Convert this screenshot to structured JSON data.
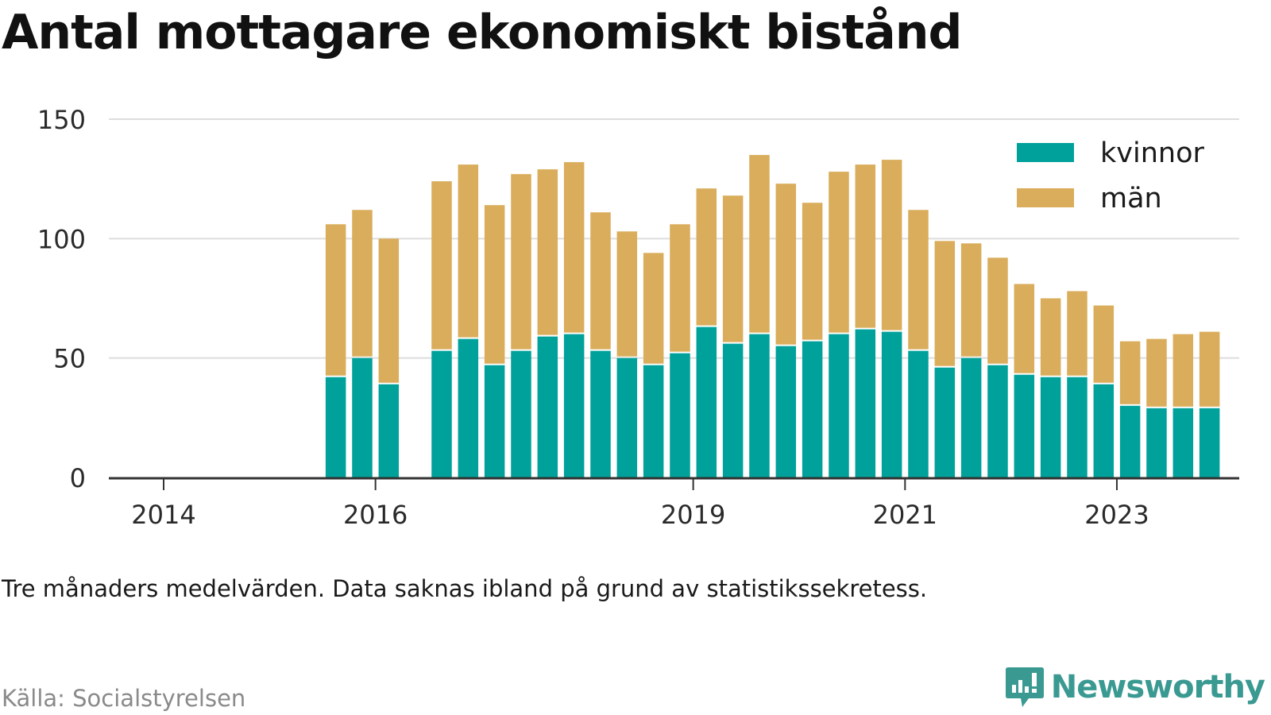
{
  "title": "Antal mottagare ekonomiskt bistånd",
  "subtitle": "Tre månaders medelvärden. Data saknas ibland på grund av statistikssekretess.",
  "source": "Källa: Socialstyrelsen",
  "brand": {
    "name": "Newsworthy",
    "icon": "newsworthy-logo-icon",
    "color": "#3a9a92"
  },
  "chart_data": {
    "type": "bar",
    "stacked": true,
    "xlabel": "",
    "ylabel": "",
    "ylim": [
      0,
      150
    ],
    "yticks": [
      0,
      50,
      100,
      150
    ],
    "xticks": [
      "2014",
      "2016",
      "2019",
      "2021",
      "2023"
    ],
    "grid": true,
    "legend_position": "top-right",
    "colors": {
      "kvinnor": "#00a19a",
      "män": "#d9ad5b"
    },
    "x": [
      "2015Q3",
      "2015Q4",
      "2016Q1",
      "2016Q2",
      "2016Q3",
      "2016Q4",
      "2017Q1",
      "2017Q2",
      "2017Q3",
      "2017Q4",
      "2018Q1",
      "2018Q2",
      "2018Q3",
      "2018Q4",
      "2019Q1",
      "2019Q2",
      "2019Q3",
      "2019Q4",
      "2020Q1",
      "2020Q2",
      "2020Q3",
      "2020Q4",
      "2021Q1",
      "2021Q2",
      "2021Q3",
      "2021Q4",
      "2022Q1",
      "2022Q2",
      "2022Q3",
      "2022Q4",
      "2023Q1",
      "2023Q2",
      "2023Q3",
      "2023Q4"
    ],
    "series": [
      {
        "name": "kvinnor",
        "values": [
          42,
          50,
          39,
          null,
          53,
          58,
          47,
          53,
          59,
          60,
          53,
          50,
          47,
          52,
          63,
          56,
          60,
          55,
          57,
          60,
          62,
          61,
          53,
          46,
          50,
          47,
          43,
          42,
          42,
          39,
          30,
          29,
          29,
          29
        ]
      },
      {
        "name": "män",
        "values": [
          64,
          62,
          61,
          null,
          71,
          73,
          67,
          74,
          70,
          72,
          58,
          53,
          47,
          54,
          58,
          62,
          75,
          68,
          58,
          68,
          69,
          72,
          59,
          53,
          48,
          45,
          38,
          33,
          36,
          33,
          27,
          29,
          31,
          32
        ]
      }
    ]
  }
}
